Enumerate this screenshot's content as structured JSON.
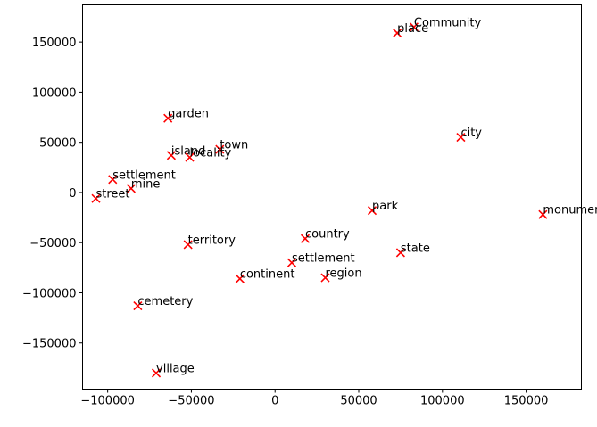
{
  "chart_data": {
    "type": "scatter",
    "title": "",
    "xlabel": "",
    "ylabel": "",
    "xlim": [
      -115000,
      183000
    ],
    "ylim": [
      -196000,
      187000
    ],
    "x_ticks": [
      -100000,
      -50000,
      0,
      50000,
      100000,
      150000
    ],
    "x_tick_labels": [
      "−100000",
      "−50000",
      "0",
      "50000",
      "100000",
      "150000"
    ],
    "y_ticks": [
      -150000,
      -100000,
      -50000,
      0,
      50000,
      100000,
      150000
    ],
    "y_tick_labels": [
      "−150000",
      "−100000",
      "−50000",
      "0",
      "50000",
      "100000",
      "150000"
    ],
    "grid": false,
    "marker": "x",
    "marker_color": "#ff0000",
    "points": [
      {
        "label": "Community",
        "x": 83000,
        "y": 165000
      },
      {
        "label": "place",
        "x": 73000,
        "y": 159000
      },
      {
        "label": "garden",
        "x": -64000,
        "y": 74000
      },
      {
        "label": "city",
        "x": 111000,
        "y": 55000
      },
      {
        "label": "town",
        "x": -33000,
        "y": 43000
      },
      {
        "label": "island",
        "x": -62000,
        "y": 37000
      },
      {
        "label": "locality",
        "x": -51000,
        "y": 35000
      },
      {
        "label": "settlement",
        "x": -97000,
        "y": 13000
      },
      {
        "label": "mine",
        "x": -86000,
        "y": 4000
      },
      {
        "label": "street",
        "x": -107000,
        "y": -6000
      },
      {
        "label": "park",
        "x": 58000,
        "y": -18000
      },
      {
        "label": "monument",
        "x": 160000,
        "y": -22000
      },
      {
        "label": "country",
        "x": 18000,
        "y": -46000
      },
      {
        "label": "territory",
        "x": -52000,
        "y": -52000
      },
      {
        "label": "state",
        "x": 75000,
        "y": -60000
      },
      {
        "label": "settlement",
        "x": 10000,
        "y": -70000
      },
      {
        "label": "region",
        "x": 30000,
        "y": -85000
      },
      {
        "label": "continent",
        "x": -21000,
        "y": -86000
      },
      {
        "label": "cemetery",
        "x": -82000,
        "y": -113000
      },
      {
        "label": "village",
        "x": -71000,
        "y": -180000
      }
    ]
  }
}
